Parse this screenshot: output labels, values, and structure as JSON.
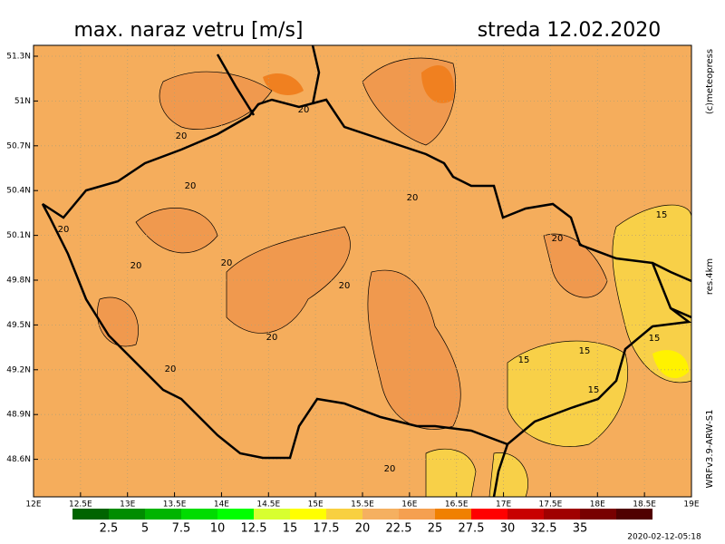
{
  "header": {
    "title": "max. naraz vetru [m/s]",
    "date": "streda 12.02.2020"
  },
  "side_texts": {
    "copyright": "(c)meteopress",
    "resolution": "res.4km",
    "model": "WRFv3.9-ARW-S1"
  },
  "timestamp": "2020-02-12-05:18",
  "latitude_labels": [
    "51.3N",
    "51N",
    "50.7N",
    "50.4N",
    "50.1N",
    "49.8N",
    "49.5N",
    "49.2N",
    "48.9N",
    "48.6N"
  ],
  "longitude_labels": [
    "12E",
    "12.5E",
    "13E",
    "13.5E",
    "14E",
    "14.5E",
    "15E",
    "15.5E",
    "16E",
    "16.5E",
    "17E",
    "17.5E",
    "18E",
    "18.5E",
    "19E"
  ],
  "colorbar": {
    "labels": [
      "2.5",
      "5",
      "7.5",
      "10",
      "12.5",
      "15",
      "17.5",
      "20",
      "22.5",
      "25",
      "27.5",
      "30",
      "32.5",
      "35"
    ],
    "colors": [
      "#006400",
      "#008c00",
      "#00b400",
      "#00dc00",
      "#00ff00",
      "#d8ff30",
      "#ffff00",
      "#f8d040",
      "#f5b060",
      "#f5a050",
      "#f08000",
      "#ff0000",
      "#c80000",
      "#a00000",
      "#780000",
      "#500000"
    ]
  },
  "contour_labels": [
    "20",
    "20",
    "20",
    "20",
    "20",
    "20",
    "20",
    "20",
    "20",
    "20",
    "20",
    "20",
    "15",
    "15",
    "15",
    "15",
    "15"
  ]
}
